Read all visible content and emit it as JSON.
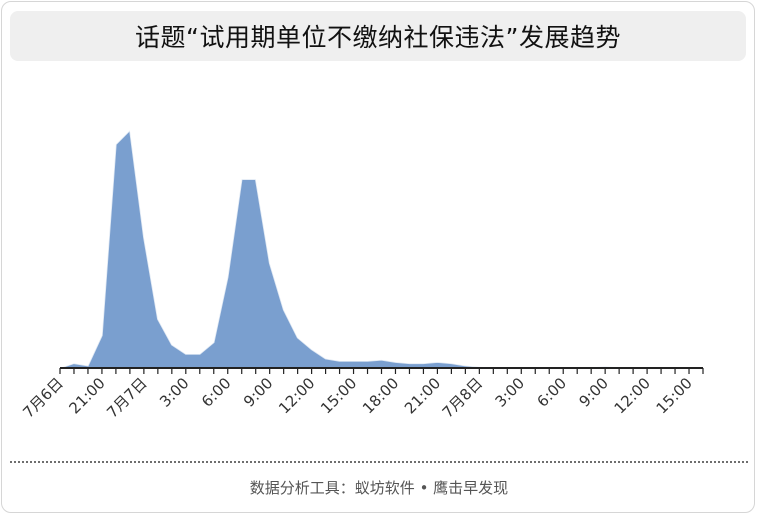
{
  "title": "话题“试用期单位不缴纳社保违法”发展趋势",
  "footer": "数据分析工具：蚁坊软件 • 鹰击早发现",
  "chart_data": {
    "type": "area",
    "title": "话题“试用期单位不缴纳社保违法”发展趋势",
    "xlabel": "",
    "ylabel": "",
    "grid": false,
    "legend": "none",
    "ylim": [
      0,
      100
    ],
    "fill_color": "#7a9fcf",
    "edge_color": "#ffffff",
    "x_start_label": "7月6日 18:00",
    "x_step_hours": 1,
    "tick_labels": [
      "7月6日",
      "21:00",
      "7月7日",
      "3:00",
      "6:00",
      "9:00",
      "12:00",
      "15:00",
      "18:00",
      "21:00",
      "7月8日",
      "3:00",
      "6:00",
      "9:00",
      "12:00",
      "15:00"
    ],
    "tick_label_positions": [
      0,
      3,
      6,
      9,
      12,
      15,
      18,
      21,
      24,
      27,
      30,
      33,
      36,
      39,
      42,
      45
    ],
    "minor_tick_count": 47,
    "values": [
      0,
      2,
      1,
      14,
      96,
      102,
      56,
      21,
      10,
      6,
      6,
      11,
      39,
      81,
      81,
      45,
      25,
      13,
      8,
      4,
      3,
      3,
      3,
      3.5,
      2.5,
      2,
      2,
      2.5,
      2,
      1,
      0.5,
      0.3,
      0.2,
      0.1,
      0.1,
      0.1,
      0.1,
      0.2,
      0.3,
      0.6,
      0.3,
      0.2,
      0.1,
      0.1,
      0.1,
      0,
      0
    ]
  }
}
